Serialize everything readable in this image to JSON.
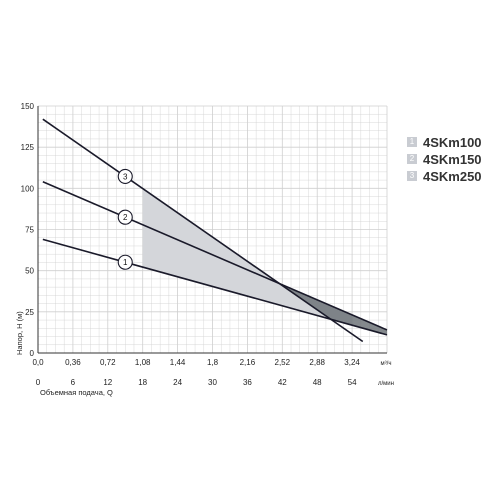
{
  "chart_data": {
    "type": "line",
    "y_ticks": [
      "0",
      "25",
      "50",
      "75",
      "100",
      "125",
      "150"
    ],
    "ylim": [
      0,
      150
    ],
    "x_top_ticks": [
      "0,0",
      "0,36",
      "0,72",
      "1,08",
      "1,44",
      "1,8",
      "2,16",
      "2,52",
      "2,88",
      "3,24"
    ],
    "x_top_values": [
      0,
      0.36,
      0.72,
      1.08,
      1.44,
      1.8,
      2.16,
      2.52,
      2.88,
      3.24
    ],
    "x_top_unit": "м³/ч",
    "x_bottom_ticks": [
      "0",
      "6",
      "12",
      "18",
      "24",
      "30",
      "36",
      "42",
      "48",
      "54"
    ],
    "x_bottom_unit": "л/мин",
    "xlim": [
      0,
      3.6
    ],
    "ylabel": "Напор, H (м)",
    "xlabel": "Объемная подача, Q",
    "grid": true,
    "legend_position": "right",
    "series": [
      {
        "marker": "1",
        "name": "4SKm100",
        "x": [
          0.05,
          3.6
        ],
        "y": [
          69,
          11
        ],
        "marker_at": 0.9
      },
      {
        "marker": "2",
        "name": "4SKm150",
        "x": [
          0.05,
          3.6
        ],
        "y": [
          104,
          14
        ],
        "marker_at": 0.9
      },
      {
        "marker": "3",
        "name": "4SKm250",
        "x": [
          0.05,
          3.35
        ],
        "y": [
          142,
          7
        ],
        "marker_at": 0.9
      }
    ],
    "recommended_range": [
      1.08,
      3.24
    ],
    "colors": {
      "line": "#1a1a2a",
      "region_light": "#d4d6da",
      "region_mid": "#b0b4ba",
      "region_dark": "#6f7479",
      "grid": "#cfcfcf"
    }
  },
  "legend": [
    {
      "number": "1",
      "label": "4SKm100"
    },
    {
      "number": "2",
      "label": "4SKm150"
    },
    {
      "number": "3",
      "label": "4SKm250"
    }
  ]
}
